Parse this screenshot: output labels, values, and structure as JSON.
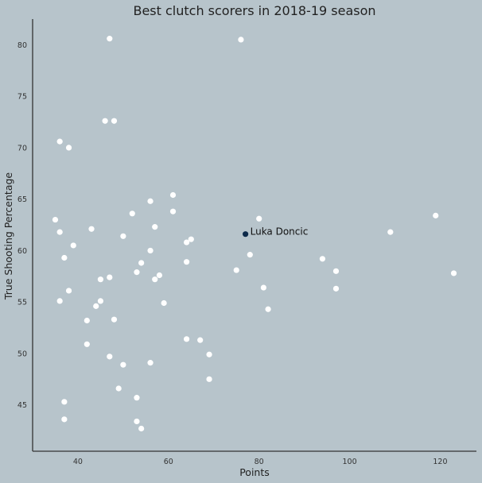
{
  "chart_data": {
    "type": "scatter",
    "title": "Best clutch scorers in 2018-19 season",
    "xlabel": "Points",
    "ylabel": "True Shooting Percentage",
    "xlim": [
      30,
      128
    ],
    "ylim": [
      40.5,
      82.5
    ],
    "xticks": [
      40,
      60,
      80,
      100,
      120
    ],
    "yticks": [
      45,
      50,
      55,
      60,
      65,
      70,
      75,
      80
    ],
    "grid": false,
    "point_color": "#ffffff",
    "highlight_color": "#0d2a4a",
    "axis_color": "#333333",
    "background": "#b7c4cb",
    "points": [
      {
        "x": 47,
        "y": 80.6
      },
      {
        "x": 76,
        "y": 80.5
      },
      {
        "x": 46,
        "y": 72.6
      },
      {
        "x": 48,
        "y": 72.6
      },
      {
        "x": 36,
        "y": 70.6
      },
      {
        "x": 38,
        "y": 70.0
      },
      {
        "x": 61,
        "y": 65.4
      },
      {
        "x": 56,
        "y": 64.8
      },
      {
        "x": 52,
        "y": 63.6
      },
      {
        "x": 61,
        "y": 63.8
      },
      {
        "x": 35,
        "y": 63.0
      },
      {
        "x": 80,
        "y": 63.1
      },
      {
        "x": 119,
        "y": 63.4
      },
      {
        "x": 43,
        "y": 62.1
      },
      {
        "x": 57,
        "y": 62.3
      },
      {
        "x": 36,
        "y": 61.8
      },
      {
        "x": 109,
        "y": 61.8
      },
      {
        "x": 50,
        "y": 61.4
      },
      {
        "x": 65,
        "y": 61.1
      },
      {
        "x": 64,
        "y": 60.8
      },
      {
        "x": 39,
        "y": 60.5
      },
      {
        "x": 56,
        "y": 60.0
      },
      {
        "x": 78,
        "y": 59.6
      },
      {
        "x": 37,
        "y": 59.3
      },
      {
        "x": 94,
        "y": 59.2
      },
      {
        "x": 64,
        "y": 58.9
      },
      {
        "x": 54,
        "y": 58.8
      },
      {
        "x": 75,
        "y": 58.1
      },
      {
        "x": 97,
        "y": 58.0
      },
      {
        "x": 53,
        "y": 57.9
      },
      {
        "x": 123,
        "y": 57.8
      },
      {
        "x": 58,
        "y": 57.6
      },
      {
        "x": 47,
        "y": 57.4
      },
      {
        "x": 45,
        "y": 57.2
      },
      {
        "x": 57,
        "y": 57.2
      },
      {
        "x": 81,
        "y": 56.4
      },
      {
        "x": 97,
        "y": 56.3
      },
      {
        "x": 38,
        "y": 56.1
      },
      {
        "x": 36,
        "y": 55.1
      },
      {
        "x": 45,
        "y": 55.1
      },
      {
        "x": 59,
        "y": 54.9
      },
      {
        "x": 44,
        "y": 54.6
      },
      {
        "x": 82,
        "y": 54.3
      },
      {
        "x": 42,
        "y": 53.2
      },
      {
        "x": 48,
        "y": 53.3
      },
      {
        "x": 64,
        "y": 51.4
      },
      {
        "x": 67,
        "y": 51.3
      },
      {
        "x": 42,
        "y": 50.9
      },
      {
        "x": 69,
        "y": 49.9
      },
      {
        "x": 47,
        "y": 49.7
      },
      {
        "x": 56,
        "y": 49.1
      },
      {
        "x": 50,
        "y": 48.9
      },
      {
        "x": 69,
        "y": 47.5
      },
      {
        "x": 49,
        "y": 46.6
      },
      {
        "x": 53,
        "y": 45.7
      },
      {
        "x": 37,
        "y": 45.3
      },
      {
        "x": 37,
        "y": 43.6
      },
      {
        "x": 53,
        "y": 43.4
      },
      {
        "x": 54,
        "y": 42.7
      }
    ],
    "annotations": [
      {
        "x": 77,
        "y": 61.6,
        "label": "Luka Doncic"
      }
    ]
  }
}
